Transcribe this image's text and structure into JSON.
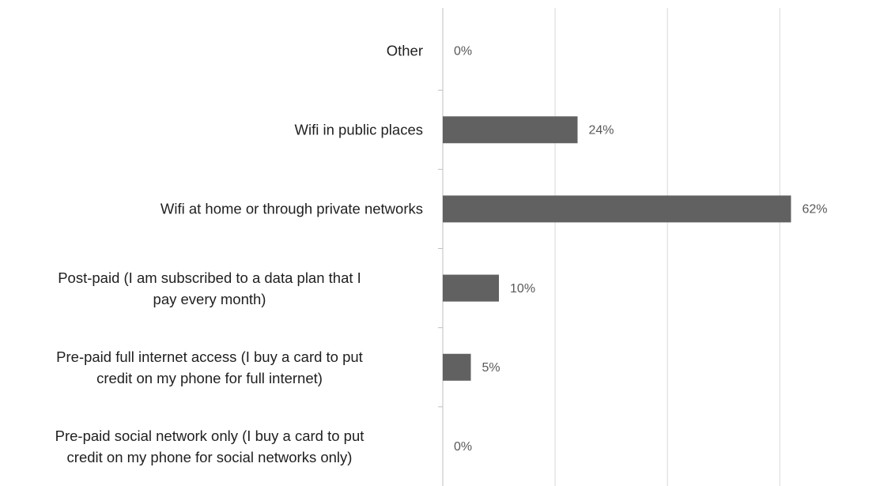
{
  "chart_data": {
    "type": "barh",
    "categories": [
      "Other",
      "Wifi in public places",
      "Wifi at home or through private networks",
      "Post-paid (I am subscribed to a data plan that I\npay every month)",
      "Pre-paid full internet access  (I buy a card to put\ncredit on my phone for full  internet)",
      "Pre-paid social network only (I buy a card to put\ncredit on my phone for social networks only)"
    ],
    "values": [
      0,
      24,
      62,
      10,
      5,
      0
    ],
    "value_labels": [
      "0%",
      "24%",
      "62%",
      "10%",
      "5%",
      "0%"
    ],
    "color": "#616161",
    "xlim": [
      0,
      77
    ],
    "xticks": [
      0,
      20,
      40,
      60
    ],
    "grid": true
  }
}
